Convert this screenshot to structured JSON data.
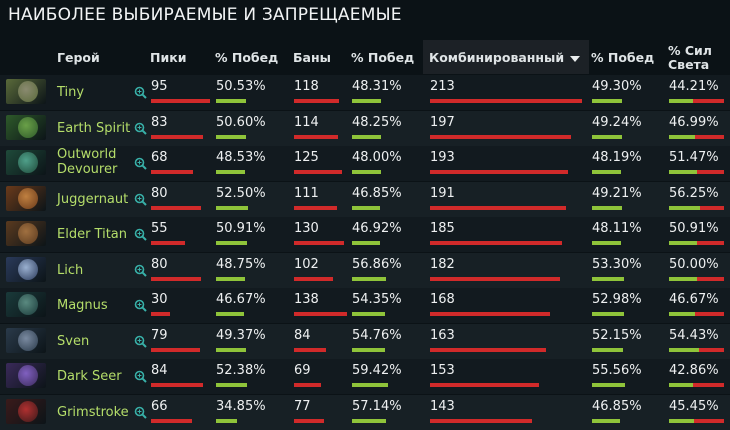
{
  "title": "НАИБОЛЕЕ ВЫБИРАЕМЫЕ И ЗАПРЕЩАЕМЫЕ",
  "columns": {
    "hero": "Герой",
    "picks": "Пики",
    "pick_win": "% Побед",
    "bans": "Баны",
    "ban_win": "% Побед",
    "combined": "Комбинированный",
    "combined_win": "% Побед",
    "radiant_line1": "% Сил",
    "radiant_line2": "Света"
  },
  "colors": {
    "bar_red": "#d12a2a",
    "bar_green": "#8fc43a",
    "hero_name": "#b5de6a"
  },
  "heroes": [
    {
      "name": "Tiny",
      "icon": "tiny-portrait-icon",
      "picks": "95",
      "pick_win": "50.53%",
      "bans": "118",
      "ban_win": "48.31%",
      "combined": "213",
      "combined_win": "49.30%",
      "radiant": "44.21%",
      "c1": "#5a6a3a",
      "c2": "#8a8a70"
    },
    {
      "name": "Earth Spirit",
      "icon": "earth-spirit-portrait-icon",
      "picks": "83",
      "pick_win": "50.60%",
      "bans": "114",
      "ban_win": "48.25%",
      "combined": "197",
      "combined_win": "49.24%",
      "radiant": "46.99%",
      "c1": "#2e5a2a",
      "c2": "#6aa048"
    },
    {
      "name": "Outworld Devourer",
      "icon": "outworld-devourer-portrait-icon",
      "picks": "68",
      "pick_win": "48.53%",
      "bans": "125",
      "ban_win": "48.00%",
      "combined": "193",
      "combined_win": "48.19%",
      "radiant": "51.47%",
      "c1": "#1f4a3a",
      "c2": "#4fa08a"
    },
    {
      "name": "Juggernaut",
      "icon": "juggernaut-portrait-icon",
      "picks": "80",
      "pick_win": "52.50%",
      "bans": "111",
      "ban_win": "46.85%",
      "combined": "191",
      "combined_win": "49.21%",
      "radiant": "56.25%",
      "c1": "#6a3a1a",
      "c2": "#c08040"
    },
    {
      "name": "Elder Titan",
      "icon": "elder-titan-portrait-icon",
      "picks": "55",
      "pick_win": "50.91%",
      "bans": "130",
      "ban_win": "46.92%",
      "combined": "185",
      "combined_win": "48.11%",
      "radiant": "50.91%",
      "c1": "#5a3a1f",
      "c2": "#a07040"
    },
    {
      "name": "Lich",
      "icon": "lich-portrait-icon",
      "picks": "80",
      "pick_win": "48.75%",
      "bans": "102",
      "ban_win": "56.86%",
      "combined": "182",
      "combined_win": "53.30%",
      "radiant": "50.00%",
      "c1": "#2a3a5a",
      "c2": "#9ab0d0"
    },
    {
      "name": "Magnus",
      "icon": "magnus-portrait-icon",
      "picks": "30",
      "pick_win": "46.67%",
      "bans": "138",
      "ban_win": "54.35%",
      "combined": "168",
      "combined_win": "52.98%",
      "radiant": "46.67%",
      "c1": "#1a3a3a",
      "c2": "#5a8a80"
    },
    {
      "name": "Sven",
      "icon": "sven-portrait-icon",
      "picks": "79",
      "pick_win": "49.37%",
      "bans": "84",
      "ban_win": "54.76%",
      "combined": "163",
      "combined_win": "52.15%",
      "radiant": "54.43%",
      "c1": "#2a3a4a",
      "c2": "#7a8aa0"
    },
    {
      "name": "Dark Seer",
      "icon": "dark-seer-portrait-icon",
      "picks": "84",
      "pick_win": "52.38%",
      "bans": "69",
      "ban_win": "59.42%",
      "combined": "153",
      "combined_win": "55.56%",
      "radiant": "42.86%",
      "c1": "#3a2a5a",
      "c2": "#8060c0"
    },
    {
      "name": "Grimstroke",
      "icon": "grimstroke-portrait-icon",
      "picks": "66",
      "pick_win": "34.85%",
      "bans": "77",
      "ban_win": "57.14%",
      "combined": "143",
      "combined_win": "46.85%",
      "radiant": "45.45%",
      "c1": "#3a1a1a",
      "c2": "#b03030"
    }
  ]
}
